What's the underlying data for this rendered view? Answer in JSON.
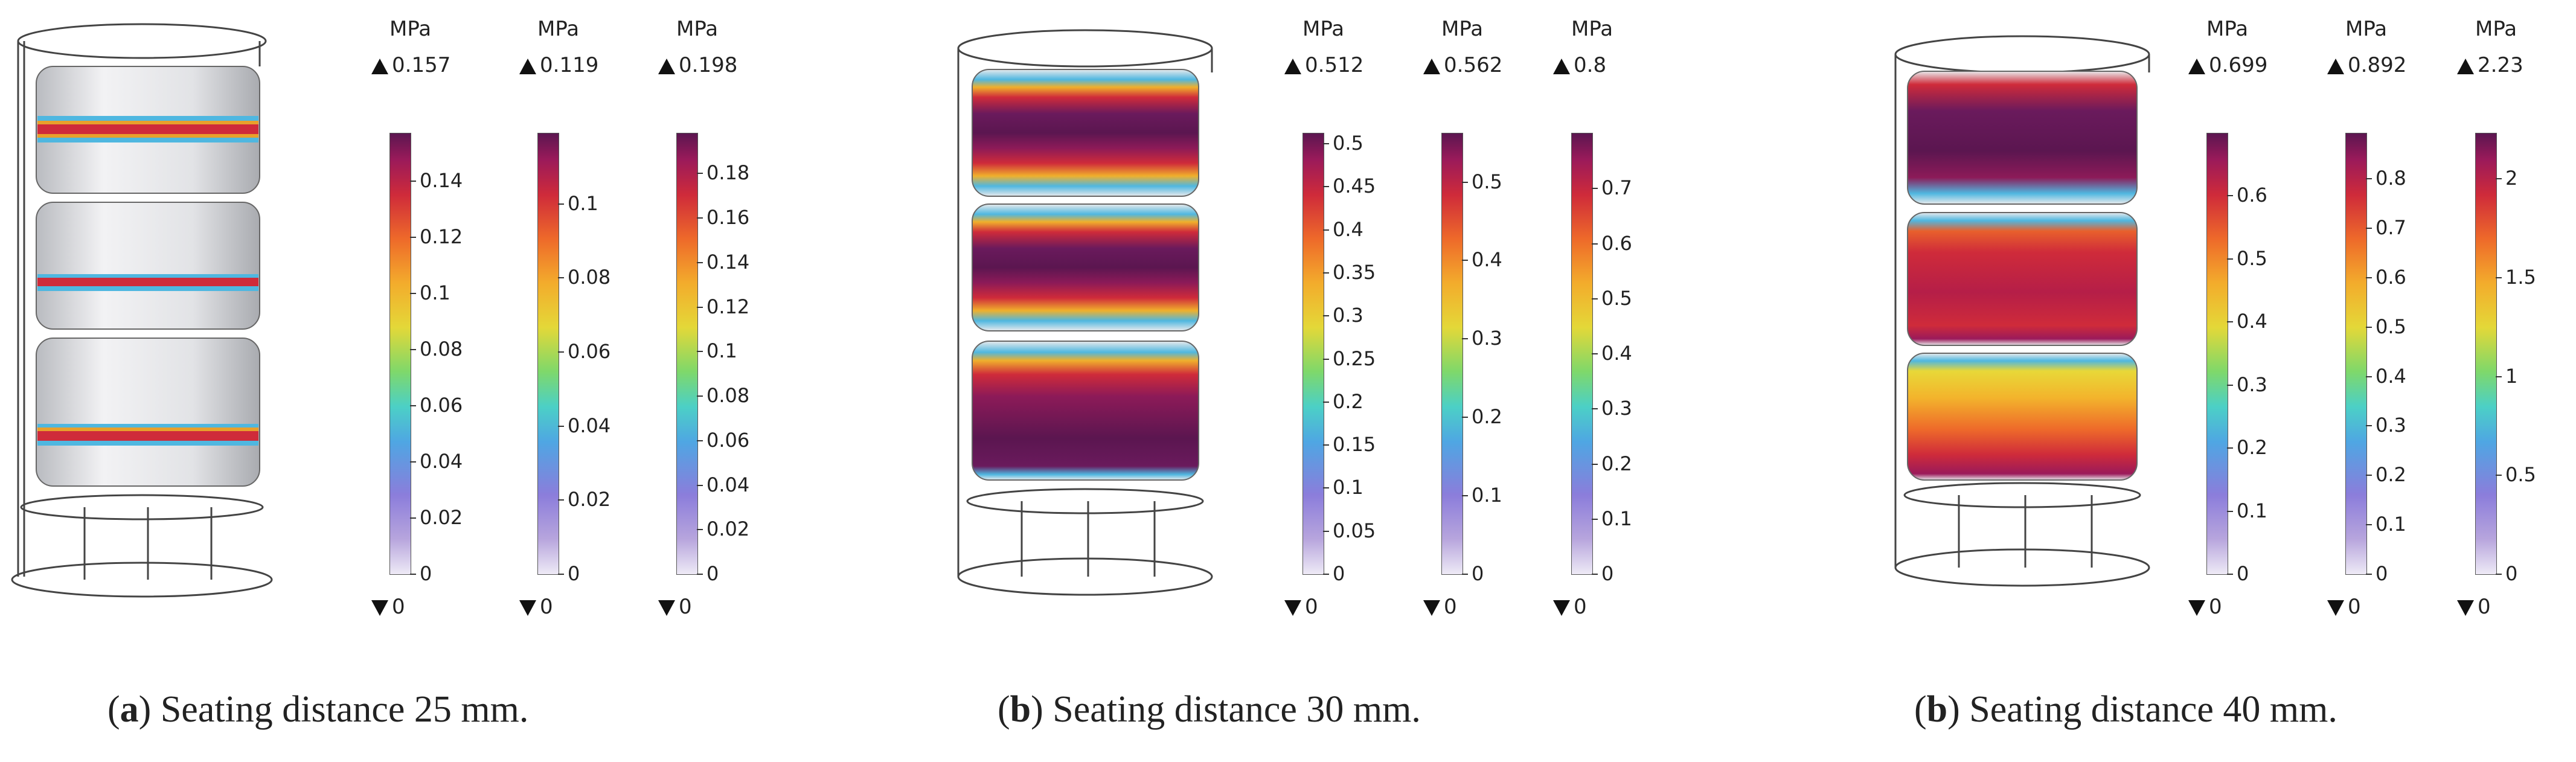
{
  "panels": [
    {
      "label": "a",
      "caption": "Seating distance 25 mm.",
      "colorbars": [
        {
          "unit": "MPa",
          "max": "0.157",
          "min": "0",
          "scale_max": 0.157,
          "ticks": [
            "0",
            "0.02",
            "0.04",
            "0.06",
            "0.08",
            "0.1",
            "0.12",
            "0.14"
          ]
        },
        {
          "unit": "MPa",
          "max": "0.119",
          "min": "0",
          "scale_max": 0.119,
          "ticks": [
            "0",
            "0.02",
            "0.04",
            "0.06",
            "0.08",
            "0.1"
          ]
        },
        {
          "unit": "MPa",
          "max": "0.198",
          "min": "0",
          "scale_max": 0.198,
          "ticks": [
            "0",
            "0.02",
            "0.04",
            "0.06",
            "0.08",
            "0.1",
            "0.12",
            "0.14",
            "0.16",
            "0.18"
          ]
        }
      ]
    },
    {
      "label": "b",
      "caption": "Seating distance 30 mm.",
      "colorbars": [
        {
          "unit": "MPa",
          "max": "0.512",
          "min": "0",
          "scale_max": 0.512,
          "ticks": [
            "0",
            "0.05",
            "0.1",
            "0.15",
            "0.2",
            "0.25",
            "0.3",
            "0.35",
            "0.4",
            "0.45",
            "0.5"
          ]
        },
        {
          "unit": "MPa",
          "max": "0.562",
          "min": "0",
          "scale_max": 0.562,
          "ticks": [
            "0",
            "0.1",
            "0.2",
            "0.3",
            "0.4",
            "0.5"
          ]
        },
        {
          "unit": "MPa",
          "max": "0.8",
          "min": "0",
          "scale_max": 0.8,
          "ticks": [
            "0",
            "0.1",
            "0.2",
            "0.3",
            "0.4",
            "0.5",
            "0.6",
            "0.7"
          ]
        }
      ]
    },
    {
      "label": "b",
      "caption": "Seating distance 40 mm.",
      "colorbars": [
        {
          "unit": "MPa",
          "max": "0.699",
          "min": "0",
          "scale_max": 0.699,
          "ticks": [
            "0",
            "0.1",
            "0.2",
            "0.3",
            "0.4",
            "0.5",
            "0.6"
          ]
        },
        {
          "unit": "MPa",
          "max": "0.892",
          "min": "0",
          "scale_max": 0.892,
          "ticks": [
            "0",
            "0.1",
            "0.2",
            "0.3",
            "0.4",
            "0.5",
            "0.6",
            "0.7",
            "0.8"
          ]
        },
        {
          "unit": "MPa",
          "max": "2.23",
          "min": "0",
          "scale_max": 2.23,
          "ticks": [
            "0",
            "0.5",
            "1",
            "1.5",
            "2"
          ]
        }
      ]
    }
  ]
}
